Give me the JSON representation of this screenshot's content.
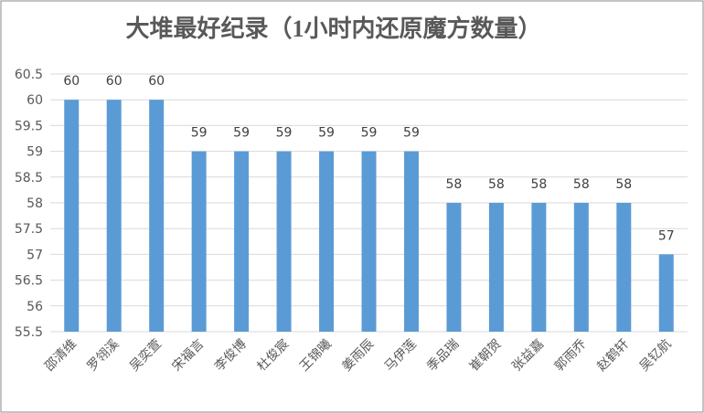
{
  "chart_data": {
    "type": "bar",
    "title": "大堆最好纪录（1小时内还原魔方数量）",
    "categories": [
      "邵清维",
      "罗翎溪",
      "吴奕萱",
      "宋福言",
      "李俊博",
      "杜俊宸",
      "王锦曦",
      "姜雨辰",
      "马伊莲",
      "季品瑞",
      "崔朝贺",
      "张益嘉",
      "郭雨乔",
      "赵鹤轩",
      "吴钇航"
    ],
    "values": [
      60,
      60,
      60,
      59,
      59,
      59,
      59,
      59,
      59,
      58,
      58,
      58,
      58,
      58,
      57
    ],
    "color": "#5b9bd5",
    "ylim": [
      55.5,
      60.5
    ],
    "yticks": [
      55.5,
      56,
      56.5,
      57,
      57.5,
      58,
      58.5,
      59,
      59.5,
      60,
      60.5
    ],
    "grid": true
  }
}
